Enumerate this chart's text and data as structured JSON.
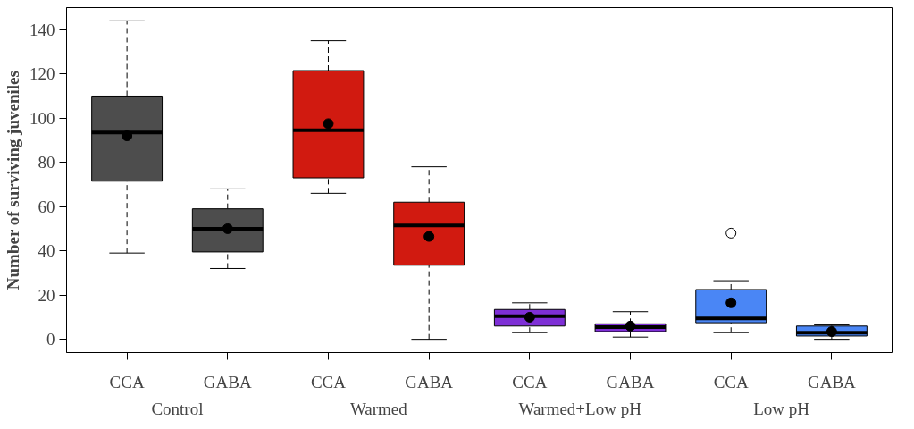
{
  "chart_data": {
    "type": "box",
    "ylabel": "Number of surviving juveniles",
    "categories": [
      "CCA",
      "GABA",
      "CCA",
      "GABA",
      "CCA",
      "GABA",
      "CCA",
      "GABA"
    ],
    "ylim": [
      -6,
      150
    ],
    "yticks": [
      0,
      20,
      40,
      60,
      80,
      100,
      120,
      140
    ],
    "grid": false,
    "annotations": [
      "Control",
      "Warmed",
      "Warmed+Low pH",
      "Low pH"
    ],
    "colors": [
      "#4d4d4d",
      "#4d4d4d",
      "#d11a10",
      "#d11a10",
      "#7e2fd6",
      "#7e2fd6",
      "#4a86f5",
      "#4a86f5"
    ],
    "boxes": [
      {
        "low": 39,
        "q1": 71.5,
        "median": 93.5,
        "q3": 110,
        "high": 144,
        "mean": 92
      },
      {
        "low": 32,
        "q1": 39.5,
        "median": 50,
        "q3": 59,
        "high": 68,
        "mean": 50
      },
      {
        "low": 66,
        "q1": 73,
        "median": 94.5,
        "q3": 121.5,
        "high": 135,
        "mean": 97.5
      },
      {
        "low": 0,
        "q1": 33.5,
        "median": 51.5,
        "q3": 62,
        "high": 78,
        "mean": 46.5
      },
      {
        "low": 3,
        "q1": 6,
        "median": 10.5,
        "q3": 13.5,
        "high": 16.5,
        "mean": 10
      },
      {
        "low": 1,
        "q1": 3.5,
        "median": 5.5,
        "q3": 7,
        "high": 12.5,
        "mean": 6
      },
      {
        "low": 3,
        "q1": 7.5,
        "median": 9.5,
        "q3": 22.5,
        "high": 26.5,
        "mean": 16.5,
        "outliers": [
          48
        ]
      },
      {
        "low": 0,
        "q1": 1.5,
        "median": 3,
        "q3": 6,
        "high": 6.5,
        "mean": 3.5
      }
    ]
  }
}
